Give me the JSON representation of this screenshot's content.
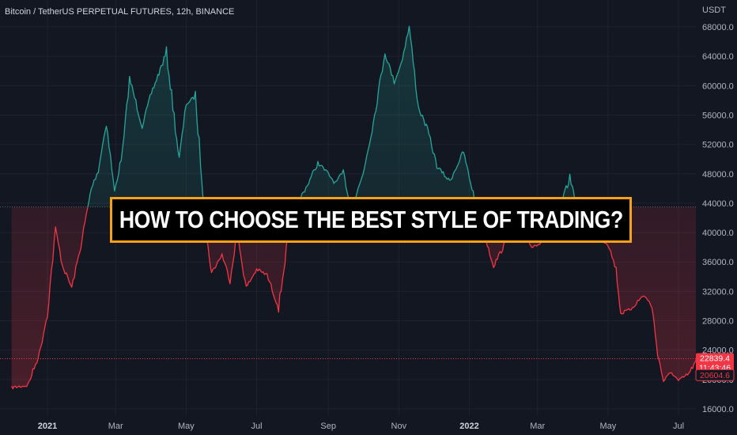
{
  "header": {
    "symbol_label": "Bitcoin / TetherUS PERPETUAL FUTURES, 12h, BINANCE"
  },
  "banner": {
    "text": "HOW TO CHOOSE THE BEST STYLE OF TRADING?"
  },
  "price_tags": {
    "current_price": "22839.4",
    "countdown": "11:43:46",
    "low_price": "20604.6"
  },
  "colors": {
    "background": "#131722",
    "up": "#26a69a",
    "down": "#f23645",
    "banner_border": "#f7a11a"
  },
  "chart_data": {
    "type": "line",
    "title": "Bitcoin / TetherUS PERPETUAL FUTURES, 12h, BINANCE",
    "ylabel": "USDT",
    "xlabel": "",
    "ylim": [
      16000,
      68000
    ],
    "y_ticks": [
      "16000.0",
      "20000.0",
      "24000.0",
      "28000.0",
      "32000.0",
      "36000.0",
      "40000.0",
      "44000.0",
      "48000.0",
      "52000.0",
      "56000.0",
      "60000.0",
      "64000.0",
      "68000.0"
    ],
    "x_ticks": [
      "2021",
      "Mar",
      "May",
      "Jul",
      "Sep",
      "Nov",
      "2022",
      "Mar",
      "May",
      "Jul"
    ],
    "x_tick_dates": [
      "2021-01-01",
      "2021-03-01",
      "2021-05-01",
      "2021-07-01",
      "2021-09-01",
      "2021-11-01",
      "2022-01-01",
      "2022-03-01",
      "2022-05-01",
      "2022-07-01"
    ],
    "baseline": 43500,
    "current_price": 22839.4,
    "grid": true,
    "legend": "none",
    "series": [
      {
        "x": [
          "2020-12-01",
          "2020-12-15",
          "2020-12-25",
          "2021-01-01",
          "2021-01-08",
          "2021-01-14",
          "2021-01-22",
          "2021-01-29",
          "2021-02-08",
          "2021-02-14",
          "2021-02-21",
          "2021-02-28",
          "2021-03-07",
          "2021-03-13",
          "2021-03-24",
          "2021-04-01",
          "2021-04-14",
          "2021-04-25",
          "2021-05-01",
          "2021-05-09",
          "2021-05-19",
          "2021-05-23",
          "2021-06-01",
          "2021-06-08",
          "2021-06-14",
          "2021-06-22",
          "2021-07-01",
          "2021-07-10",
          "2021-07-20",
          "2021-07-30",
          "2021-08-07",
          "2021-08-14",
          "2021-08-23",
          "2021-09-01",
          "2021-09-07",
          "2021-09-14",
          "2021-09-21",
          "2021-10-01",
          "2021-10-10",
          "2021-10-20",
          "2021-10-28",
          "2021-11-03",
          "2021-11-10",
          "2021-11-18",
          "2021-11-26",
          "2021-12-04",
          "2021-12-15",
          "2021-12-27",
          "2022-01-01",
          "2022-01-10",
          "2022-01-22",
          "2022-02-01",
          "2022-02-10",
          "2022-02-24",
          "2022-03-07",
          "2022-03-15",
          "2022-03-29",
          "2022-04-10",
          "2022-04-25",
          "2022-05-01",
          "2022-05-08",
          "2022-05-12",
          "2022-05-20",
          "2022-06-01",
          "2022-06-08",
          "2022-06-13",
          "2022-06-18",
          "2022-06-25",
          "2022-07-01",
          "2022-07-10",
          "2022-07-20",
          "2022-07-27"
        ],
        "values": [
          18900,
          19200,
          23500,
          29000,
          40500,
          35500,
          32500,
          37500,
          46000,
          48500,
          55000,
          45500,
          51000,
          61000,
          54500,
          59000,
          64500,
          50000,
          57500,
          58500,
          39000,
          34500,
          37000,
          33500,
          40000,
          32500,
          35000,
          34200,
          29800,
          41500,
          44500,
          46500,
          49500,
          48000,
          46700,
          48200,
          43000,
          48000,
          55000,
          64500,
          60500,
          63000,
          68000,
          57000,
          54000,
          49000,
          47000,
          51000,
          47500,
          42000,
          35500,
          38500,
          44000,
          38000,
          39000,
          40500,
          47500,
          40000,
          39000,
          38500,
          35000,
          29000,
          29500,
          31500,
          30000,
          23500,
          19800,
          21000,
          19800,
          20800,
          23500,
          22839
        ]
      }
    ]
  }
}
